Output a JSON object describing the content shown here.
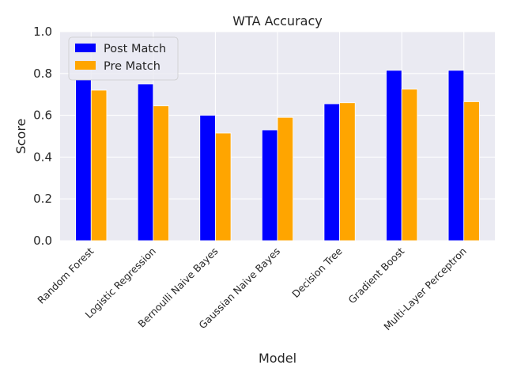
{
  "chart_data": {
    "type": "bar",
    "title": "WTA Accuracy",
    "xlabel": "Model",
    "ylabel": "Score",
    "ylim": [
      0,
      1
    ],
    "yticks": [
      0.0,
      0.2,
      0.4,
      0.6,
      0.8,
      1.0
    ],
    "ytick_labels": [
      "0.0",
      "0.2",
      "0.4",
      "0.6",
      "0.8",
      "1.0"
    ],
    "grid": true,
    "legend_position": "top-left",
    "categories": [
      "Random Forest",
      "Logistic Regression",
      "Bernoulli Naive Bayes",
      "Gaussian Naive Bayes",
      "Decision Tree",
      "Gradient Boost",
      "Multi-Layer Perceptron"
    ],
    "series": [
      {
        "name": "Post Match",
        "color": "#0000ff",
        "values": [
          0.77,
          0.75,
          0.6,
          0.53,
          0.655,
          0.815,
          0.815
        ]
      },
      {
        "name": "Pre Match",
        "color": "#ffa500",
        "values": [
          0.72,
          0.645,
          0.515,
          0.59,
          0.66,
          0.725,
          0.665
        ]
      }
    ]
  }
}
